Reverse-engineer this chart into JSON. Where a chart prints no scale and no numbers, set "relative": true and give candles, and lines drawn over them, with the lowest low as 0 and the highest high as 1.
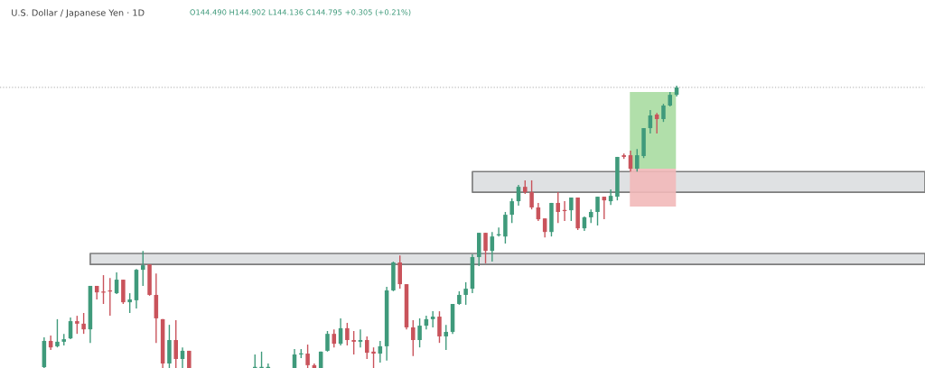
{
  "chart_data": {
    "type": "candlestick",
    "title": "U.S. Dollar / Japanese Yen · 1D",
    "annotations": [
      "O144.490 H144.902 L144.136 C144.795 +0.305 (+0.21%)"
    ],
    "relative": true,
    "categories": [
      null,
      null,
      null,
      null,
      null,
      null,
      null,
      null,
      null,
      null,
      null,
      null,
      null,
      null,
      null,
      null,
      null,
      null,
      null,
      null,
      null,
      null,
      null,
      null,
      null,
      null,
      null,
      null,
      null,
      null,
      null,
      null,
      null,
      null,
      null,
      null,
      null,
      null,
      null,
      null,
      null,
      null,
      null,
      null,
      null,
      null,
      null,
      null,
      null,
      null,
      null,
      null,
      null,
      null,
      null,
      null,
      null,
      null,
      null,
      null,
      null,
      null,
      null,
      null,
      null,
      null,
      null,
      null,
      null,
      null,
      null,
      null,
      null,
      null,
      null,
      null,
      null,
      null,
      null,
      null,
      null,
      null,
      null,
      null,
      null,
      null,
      null,
      null,
      null,
      null,
      null,
      null,
      null,
      null,
      null,
      null,
      null
    ],
    "ohlc": [
      [
        0.003,
        0.109,
        0,
        0.096
      ],
      [
        0.096,
        0.115,
        0.064,
        0.073
      ],
      [
        0.077,
        0.173,
        0.073,
        0.093
      ],
      [
        0.093,
        0.121,
        0.08,
        0.102
      ],
      [
        0.105,
        0.179,
        0.102,
        0.166
      ],
      [
        0.166,
        0.185,
        0.121,
        0.157
      ],
      [
        0.157,
        0.195,
        0.121,
        0.137
      ],
      [
        0.137,
        0.291,
        0.089,
        0.291
      ],
      [
        0.291,
        0.291,
        0.243,
        0.268
      ],
      [
        0.268,
        0.329,
        0.227,
        0.267
      ],
      [
        0.272,
        0.319,
        0.185,
        0.271
      ],
      [
        0.265,
        0.339,
        0.262,
        0.313
      ],
      [
        0.313,
        0.313,
        0.227,
        0.233
      ],
      [
        0.233,
        0.265,
        0.195,
        0.243
      ],
      [
        0.24,
        0.351,
        0.211,
        0.348
      ],
      [
        0.348,
        0.415,
        0.291,
        0.364
      ],
      [
        0.367,
        0.367,
        0.256,
        0.259
      ],
      [
        0.259,
        0.335,
        0.089,
        0.176
      ],
      [
        0.173,
        0.173,
        0,
        0.016
      ],
      [
        0.016,
        0.153,
        0,
        0.099
      ],
      [
        0.099,
        0.169,
        0,
        0.032
      ],
      [
        0.032,
        0.073,
        0,
        0.061
      ],
      [
        0.061,
        0.061,
        0,
        0
      ],
      null,
      null,
      null,
      null,
      null,
      null,
      null,
      null,
      null,
      [
        0,
        0.048,
        0,
        0
      ],
      [
        0,
        0.058,
        0,
        0
      ],
      [
        0,
        0.016,
        0,
        0
      ],
      null,
      null,
      null,
      [
        0,
        0.067,
        0,
        0.048
      ],
      [
        0.048,
        0.067,
        0.035,
        0.051
      ],
      [
        0.051,
        0.083,
        0,
        0.01
      ],
      [
        0.01,
        0.016,
        0,
        0
      ],
      [
        0,
        0.058,
        0,
        0.058
      ],
      [
        0.061,
        0.131,
        0.058,
        0.121
      ],
      [
        0.121,
        0.137,
        0.073,
        0.086
      ],
      [
        0.086,
        0.176,
        0.08,
        0.141
      ],
      [
        0.141,
        0.16,
        0.08,
        0.099
      ],
      [
        0.099,
        0.131,
        0.048,
        0.093
      ],
      [
        0.093,
        0.137,
        0.073,
        0.099
      ],
      [
        0.099,
        0.112,
        0.032,
        0.054
      ],
      [
        0.058,
        0.073,
        0,
        0.051
      ],
      [
        0.051,
        0.096,
        0.019,
        0.077
      ],
      [
        0.077,
        0.288,
        0.026,
        0.275
      ],
      [
        0.275,
        0.377,
        0.272,
        0.374
      ],
      [
        0.374,
        0.399,
        0.281,
        0.297
      ],
      [
        0.297,
        0.297,
        0.137,
        0.144
      ],
      [
        0.144,
        0.169,
        0.042,
        0.099
      ],
      [
        0.099,
        0.176,
        0.073,
        0.15
      ],
      [
        0.15,
        0.185,
        0.137,
        0.173
      ],
      [
        0.173,
        0.201,
        0.144,
        0.182
      ],
      [
        0.182,
        0.201,
        0.089,
        0.112
      ],
      [
        0.112,
        0.153,
        0.064,
        0.128
      ],
      [
        0.128,
        0.227,
        0.121,
        0.227
      ],
      [
        0.227,
        0.272,
        0.224,
        0.259
      ],
      [
        0.259,
        0.304,
        0.224,
        0.281
      ],
      [
        0.281,
        0.403,
        0.265,
        0.393
      ],
      [
        0.393,
        0.479,
        0.361,
        0.479
      ],
      [
        0.479,
        0.479,
        0.371,
        0.415
      ],
      [
        0.415,
        0.482,
        0.377,
        0.466
      ],
      [
        0.47,
        0.498,
        0.466,
        0.473
      ],
      [
        0.466,
        0.553,
        0.441,
        0.543
      ],
      [
        0.543,
        0.601,
        0.514,
        0.591
      ],
      [
        0.591,
        0.649,
        0.575,
        0.642
      ],
      [
        0.642,
        0.665,
        0.617,
        0.623
      ],
      [
        0.623,
        0.665,
        0.562,
        0.569
      ],
      [
        0.569,
        0.585,
        0.521,
        0.527
      ],
      [
        0.53,
        0.53,
        0.463,
        0.482
      ],
      [
        0.482,
        0.585,
        0.466,
        0.585
      ],
      [
        0.585,
        0.623,
        0.514,
        0.553
      ],
      [
        0.559,
        0.591,
        0.521,
        0.556
      ],
      [
        0.559,
        0.604,
        0.521,
        0.604
      ],
      [
        0.604,
        0.604,
        0.489,
        0.495
      ],
      [
        0.495,
        0.537,
        0.486,
        0.534
      ],
      [
        0.534,
        0.562,
        0.514,
        0.553
      ],
      [
        0.553,
        0.607,
        0.505,
        0.607
      ],
      [
        0.607,
        0.607,
        0.527,
        0.594
      ],
      [
        0.591,
        0.633,
        0.578,
        0.61
      ],
      [
        0.607,
        0.748,
        0.594,
        0.748
      ],
      [
        0.754,
        0.76,
        0.741,
        0.748
      ],
      [
        0.754,
        0.77,
        0.696,
        0.706
      ],
      [
        0.706,
        0.776,
        0.696,
        0.754
      ],
      [
        0.751,
        0.85,
        0.744,
        0.85
      ],
      [
        0.85,
        0.914,
        0.831,
        0.895
      ],
      [
        0.898,
        0.904,
        0.831,
        0.882
      ],
      [
        0.882,
        0.936,
        0.872,
        0.93
      ],
      [
        0.93,
        0.978,
        0.927,
        0.968
      ],
      [
        0.968,
        1,
        0.962,
        0.994
      ]
    ],
    "bands": [
      {
        "axis": "y",
        "from": 0.367,
        "to": 0.406,
        "color": "#dcdee0"
      },
      {
        "axis": "y",
        "from": 0.623,
        "to": 0.696,
        "color": "#dcdee0"
      },
      {
        "axis": "y",
        "from": 0.706,
        "to": 0.978,
        "color": "#a9dca1"
      },
      {
        "axis": "y",
        "from": 0.572,
        "to": 0.706,
        "color": "#f2b9b9"
      }
    ],
    "ref_lines": [
      {
        "axis": "y",
        "value": 0.994,
        "color": "#bdbdbd",
        "line_style": "dotted"
      }
    ]
  }
}
